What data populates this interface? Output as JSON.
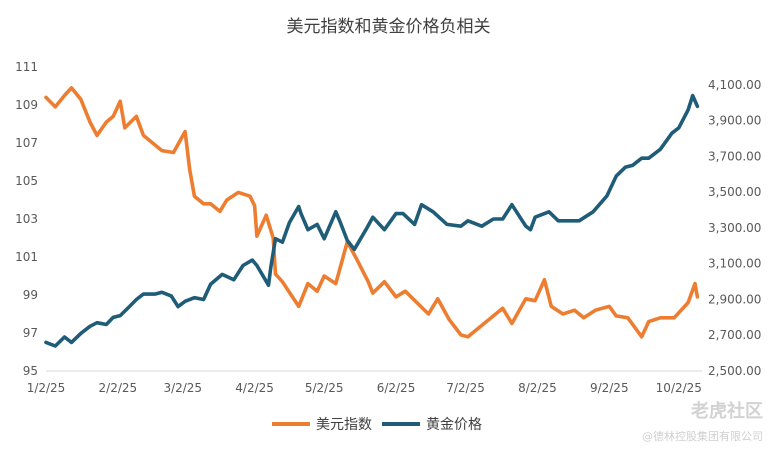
{
  "chart_data": {
    "type": "line",
    "title": "美元指数和黄金价格负相关",
    "x_ticks": [
      "1/2/25",
      "2/2/25",
      "3/2/25",
      "4/2/25",
      "5/2/25",
      "6/2/25",
      "7/2/25",
      "8/2/25",
      "9/2/25",
      "10/2/25"
    ],
    "y_left": {
      "min": 95,
      "max": 111,
      "ticks": [
        "95",
        "97",
        "99",
        "101",
        "103",
        "105",
        "107",
        "109",
        "111"
      ]
    },
    "y_right": {
      "min": 2500,
      "max": 4200,
      "ticks": [
        "2,500.00",
        "2,700.00",
        "2,900.00",
        "3,100.00",
        "3,300.00",
        "3,500.00",
        "3,700.00",
        "3,900.00",
        "4,100.00"
      ]
    },
    "grid": false,
    "legend_position": "bottom",
    "series": [
      {
        "name": "美元指数",
        "axis": "left",
        "color": "#ED7D31",
        "points": [
          [
            "2025-01-02",
            109.4
          ],
          [
            "2025-01-06",
            108.9
          ],
          [
            "2025-01-10",
            109.5
          ],
          [
            "2025-01-13",
            109.9
          ],
          [
            "2025-01-17",
            109.3
          ],
          [
            "2025-01-21",
            108.1
          ],
          [
            "2025-01-24",
            107.4
          ],
          [
            "2025-01-28",
            108.1
          ],
          [
            "2025-01-31",
            108.4
          ],
          [
            "2025-02-03",
            109.2
          ],
          [
            "2025-02-05",
            107.8
          ],
          [
            "2025-02-10",
            108.4
          ],
          [
            "2025-02-13",
            107.4
          ],
          [
            "2025-02-18",
            106.9
          ],
          [
            "2025-02-21",
            106.6
          ],
          [
            "2025-02-26",
            106.5
          ],
          [
            "2025-03-03",
            107.6
          ],
          [
            "2025-03-05",
            105.6
          ],
          [
            "2025-03-07",
            104.2
          ],
          [
            "2025-03-11",
            103.8
          ],
          [
            "2025-03-14",
            103.8
          ],
          [
            "2025-03-18",
            103.4
          ],
          [
            "2025-03-21",
            104.0
          ],
          [
            "2025-03-26",
            104.4
          ],
          [
            "2025-03-31",
            104.2
          ],
          [
            "2025-04-02",
            103.7
          ],
          [
            "2025-04-03",
            102.1
          ],
          [
            "2025-04-07",
            103.2
          ],
          [
            "2025-04-10",
            102.0
          ],
          [
            "2025-04-11",
            100.1
          ],
          [
            "2025-04-14",
            99.7
          ],
          [
            "2025-04-21",
            98.4
          ],
          [
            "2025-04-25",
            99.6
          ],
          [
            "2025-04-29",
            99.2
          ],
          [
            "2025-05-02",
            100.0
          ],
          [
            "2025-05-07",
            99.6
          ],
          [
            "2025-05-12",
            101.8
          ],
          [
            "2025-05-16",
            100.9
          ],
          [
            "2025-05-21",
            99.7
          ],
          [
            "2025-05-23",
            99.1
          ],
          [
            "2025-05-28",
            99.7
          ],
          [
            "2025-06-02",
            98.9
          ],
          [
            "2025-06-06",
            99.2
          ],
          [
            "2025-06-11",
            98.6
          ],
          [
            "2025-06-16",
            98.0
          ],
          [
            "2025-06-20",
            98.8
          ],
          [
            "2025-06-25",
            97.7
          ],
          [
            "2025-06-30",
            96.9
          ],
          [
            "2025-07-03",
            96.8
          ],
          [
            "2025-07-09",
            97.4
          ],
          [
            "2025-07-14",
            97.9
          ],
          [
            "2025-07-18",
            98.3
          ],
          [
            "2025-07-22",
            97.5
          ],
          [
            "2025-07-28",
            98.8
          ],
          [
            "2025-08-01",
            98.7
          ],
          [
            "2025-08-05",
            99.8
          ],
          [
            "2025-08-08",
            98.4
          ],
          [
            "2025-08-13",
            98.0
          ],
          [
            "2025-08-18",
            98.2
          ],
          [
            "2025-08-22",
            97.8
          ],
          [
            "2025-08-27",
            98.2
          ],
          [
            "2025-09-02",
            98.4
          ],
          [
            "2025-09-05",
            97.9
          ],
          [
            "2025-09-10",
            97.8
          ],
          [
            "2025-09-16",
            96.8
          ],
          [
            "2025-09-19",
            97.6
          ],
          [
            "2025-09-24",
            97.8
          ],
          [
            "2025-09-30",
            97.8
          ],
          [
            "2025-10-03",
            98.2
          ],
          [
            "2025-10-06",
            98.6
          ],
          [
            "2025-10-09",
            99.6
          ],
          [
            "2025-10-10",
            98.9
          ]
        ]
      },
      {
        "name": "黄金价格",
        "axis": "right",
        "color": "#1F5C78",
        "points": [
          [
            "2025-01-02",
            2660
          ],
          [
            "2025-01-06",
            2640
          ],
          [
            "2025-01-10",
            2690
          ],
          [
            "2025-01-13",
            2660
          ],
          [
            "2025-01-17",
            2710
          ],
          [
            "2025-01-21",
            2750
          ],
          [
            "2025-01-24",
            2770
          ],
          [
            "2025-01-28",
            2760
          ],
          [
            "2025-01-31",
            2800
          ],
          [
            "2025-02-03",
            2810
          ],
          [
            "2025-02-07",
            2860
          ],
          [
            "2025-02-10",
            2900
          ],
          [
            "2025-02-13",
            2930
          ],
          [
            "2025-02-18",
            2930
          ],
          [
            "2025-02-21",
            2940
          ],
          [
            "2025-02-25",
            2920
          ],
          [
            "2025-02-28",
            2860
          ],
          [
            "2025-03-03",
            2890
          ],
          [
            "2025-03-07",
            2910
          ],
          [
            "2025-03-11",
            2900
          ],
          [
            "2025-03-14",
            2985
          ],
          [
            "2025-03-19",
            3040
          ],
          [
            "2025-03-24",
            3010
          ],
          [
            "2025-03-28",
            3090
          ],
          [
            "2025-04-01",
            3120
          ],
          [
            "2025-04-03",
            3090
          ],
          [
            "2025-04-08",
            2980
          ],
          [
            "2025-04-09",
            3080
          ],
          [
            "2025-04-11",
            3240
          ],
          [
            "2025-04-14",
            3220
          ],
          [
            "2025-04-17",
            3330
          ],
          [
            "2025-04-21",
            3420
          ],
          [
            "2025-04-22",
            3380
          ],
          [
            "2025-04-25",
            3290
          ],
          [
            "2025-04-29",
            3320
          ],
          [
            "2025-05-02",
            3240
          ],
          [
            "2025-05-07",
            3390
          ],
          [
            "2025-05-09",
            3330
          ],
          [
            "2025-05-12",
            3230
          ],
          [
            "2025-05-15",
            3180
          ],
          [
            "2025-05-20",
            3290
          ],
          [
            "2025-05-23",
            3360
          ],
          [
            "2025-05-28",
            3290
          ],
          [
            "2025-06-02",
            3380
          ],
          [
            "2025-06-05",
            3380
          ],
          [
            "2025-06-10",
            3320
          ],
          [
            "2025-06-13",
            3430
          ],
          [
            "2025-06-18",
            3390
          ],
          [
            "2025-06-24",
            3320
          ],
          [
            "2025-06-30",
            3310
          ],
          [
            "2025-07-03",
            3340
          ],
          [
            "2025-07-09",
            3310
          ],
          [
            "2025-07-14",
            3350
          ],
          [
            "2025-07-18",
            3350
          ],
          [
            "2025-07-22",
            3430
          ],
          [
            "2025-07-28",
            3310
          ],
          [
            "2025-07-30",
            3290
          ],
          [
            "2025-08-01",
            3360
          ],
          [
            "2025-08-07",
            3390
          ],
          [
            "2025-08-11",
            3340
          ],
          [
            "2025-08-15",
            3340
          ],
          [
            "2025-08-20",
            3340
          ],
          [
            "2025-08-26",
            3390
          ],
          [
            "2025-09-01",
            3480
          ],
          [
            "2025-09-05",
            3590
          ],
          [
            "2025-09-09",
            3640
          ],
          [
            "2025-09-12",
            3650
          ],
          [
            "2025-09-16",
            3690
          ],
          [
            "2025-09-19",
            3690
          ],
          [
            "2025-09-24",
            3740
          ],
          [
            "2025-09-29",
            3830
          ],
          [
            "2025-10-02",
            3860
          ],
          [
            "2025-10-06",
            3960
          ],
          [
            "2025-10-08",
            4040
          ],
          [
            "2025-10-10",
            3980
          ]
        ]
      }
    ]
  },
  "watermark": "老虎社区",
  "copyright": "@德林控股集团有限公司"
}
